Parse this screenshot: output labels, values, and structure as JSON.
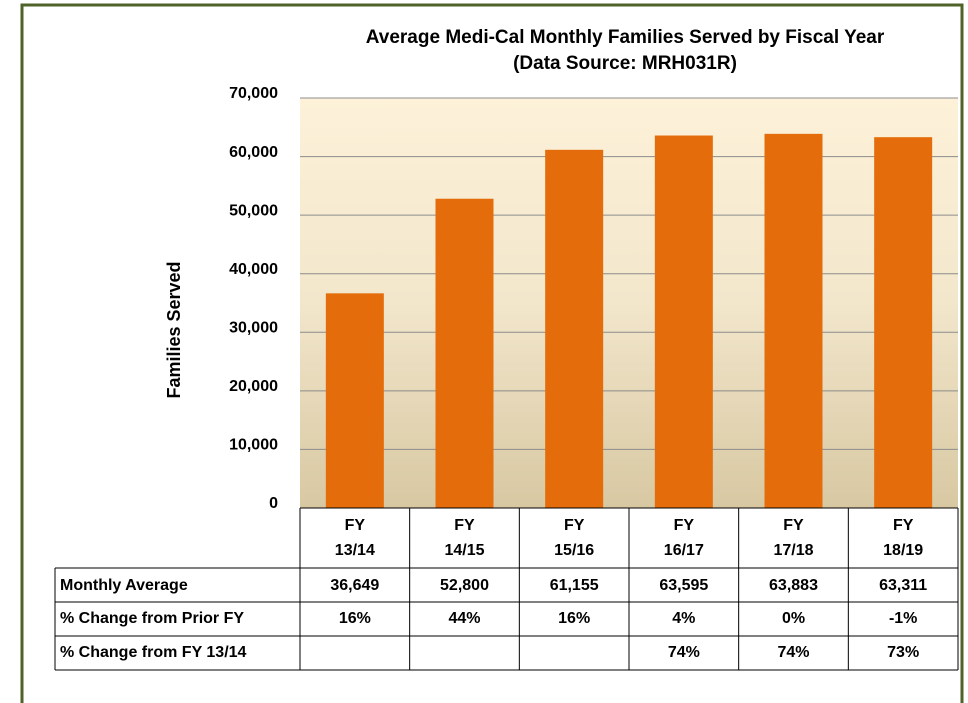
{
  "chart_data": {
    "type": "bar",
    "title": "Average Medi-Cal Monthly Families Served by Fiscal Year",
    "subtitle": "(Data Source: MRH031R)",
    "y_label": "Families Served",
    "categories": [
      "FY 13/14",
      "FY 14/15",
      "FY 15/16",
      "FY 16/17",
      "FY 17/18",
      "FY 18/19"
    ],
    "values": [
      36649,
      52800,
      61155,
      63595,
      63883,
      63311
    ],
    "value_labels": [
      "36,649",
      "52,800",
      "61,155",
      "63,595",
      "63,883",
      "63,311"
    ],
    "values_row_label": "Monthly Average",
    "color": "#e46c0a",
    "ylim": [
      0,
      70000
    ],
    "yticks": [
      0,
      {
        "value": 10000,
        "label": "10,000"
      },
      {
        "value": 20000,
        "label": "20,000"
      },
      {
        "value": 30000,
        "label": "30,000"
      },
      {
        "value": 40000,
        "label": "40,000"
      },
      {
        "value": 50000,
        "label": "50,000"
      },
      {
        "value": 60000,
        "label": "60,000"
      },
      {
        "value": 70000,
        "label": "70,000"
      }
    ],
    "grid": true,
    "table_rows": [
      {
        "label": "% Change from Prior FY",
        "cells": [
          "16%",
          "44%",
          "16%",
          "4%",
          "0%",
          "-1%"
        ]
      },
      {
        "label": "% Change from FY 13/14",
        "cells": [
          null,
          null,
          null,
          "74%",
          "74%",
          "73%"
        ]
      }
    ]
  }
}
